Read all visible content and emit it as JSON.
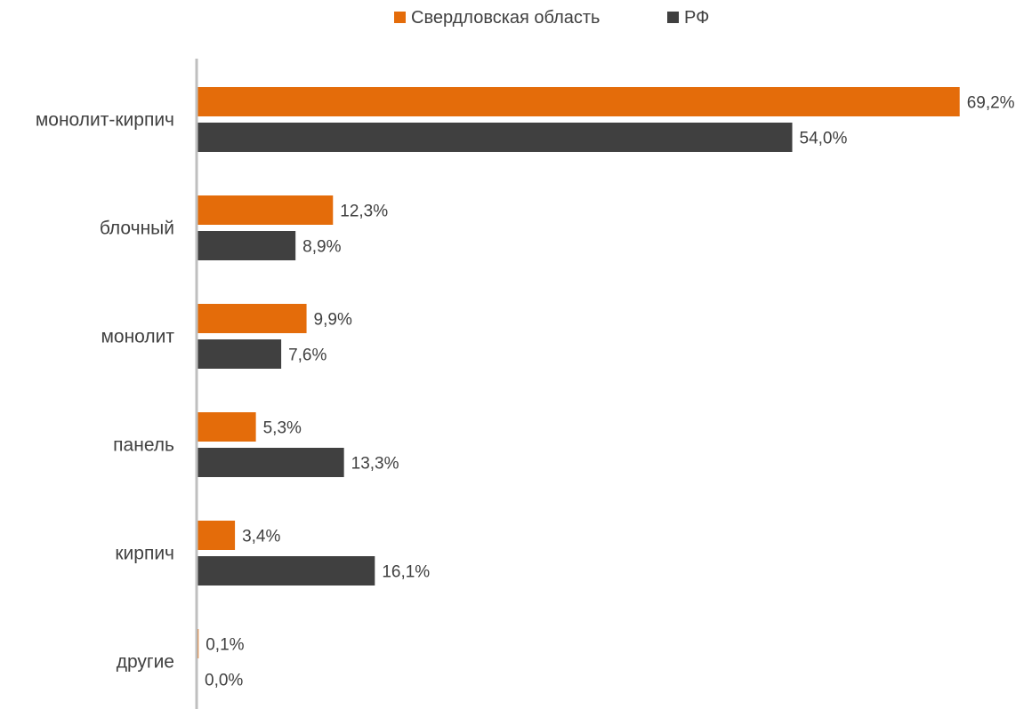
{
  "chart_data": {
    "type": "bar",
    "orientation": "horizontal",
    "categories": [
      "монолит-кирпич",
      "блочный",
      "монолит",
      "панель",
      "кирпич",
      "другие"
    ],
    "series": [
      {
        "name": "Свердловская область",
        "color": "#E46C0A",
        "values": [
          69.2,
          12.3,
          9.9,
          5.3,
          3.4,
          0.1
        ],
        "labels": [
          "69,2%",
          "12,3%",
          "9,9%",
          "5,3%",
          "3,4%",
          "0,1%"
        ]
      },
      {
        "name": "РФ",
        "color": "#404040",
        "values": [
          54.0,
          8.9,
          7.6,
          13.3,
          16.1,
          0.0
        ],
        "labels": [
          "54,0%",
          "8,9%",
          "7,6%",
          "13,3%",
          "16,1%",
          "0,0%"
        ]
      }
    ],
    "value_unit": "%",
    "xlim": [
      0,
      70
    ],
    "grid": false,
    "legend_position": "top-center"
  }
}
